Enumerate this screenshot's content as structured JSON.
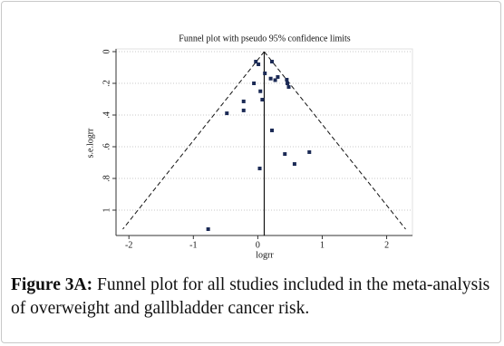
{
  "chart_data": {
    "type": "scatter",
    "title": "Funnel plot with pseudo 95% confidence limits",
    "x_label": "logrr",
    "y_label": "s.e.logrr",
    "x": [
      -0.03,
      0.01,
      0.22,
      0.11,
      0.2,
      0.27,
      0.31,
      0.45,
      0.46,
      0.48,
      -0.06,
      0.04,
      0.07,
      -0.22,
      -0.22,
      -0.48,
      0.22,
      0.8,
      0.42,
      0.57,
      0.03,
      -0.77
    ],
    "values": [
      0.063,
      0.08,
      0.063,
      0.137,
      0.17,
      0.18,
      0.16,
      0.177,
      0.2,
      0.223,
      0.2,
      0.25,
      0.303,
      0.314,
      0.371,
      0.389,
      0.497,
      0.634,
      0.646,
      0.709,
      0.737,
      1.12
    ],
    "color": "#1b2a55",
    "pooled_estimate": 0.1,
    "funnel_z": 1.96,
    "xlim": [
      -2.2,
      2.4
    ],
    "xticks": [
      -2,
      -1,
      0,
      1,
      2
    ],
    "ylim": [
      0,
      1.16
    ],
    "y_inverted": true,
    "yticks": [
      0,
      {
        "value": 0.2,
        "label": ".2"
      },
      {
        "value": 0.4,
        "label": ".4"
      },
      {
        "value": 0.6,
        "label": ".6"
      },
      {
        "value": 0.8,
        "label": ".8"
      },
      1
    ],
    "grid": true
  },
  "caption": {
    "label": "Figure 3A:",
    "text": "Funnel plot for all studies included in the meta-analysis of overweight and gallbladder cancer risk."
  }
}
